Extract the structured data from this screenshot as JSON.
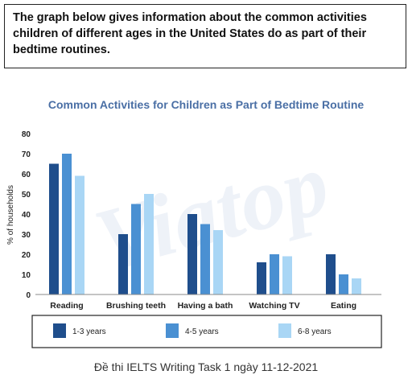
{
  "prompt_text": "The graph below gives information about the common activities children of different ages in the United States do as part of their bedtime routines.",
  "footer_text": "Đề thi IELTS Writing Task 1 ngày 11-12-2021",
  "watermark_text": "Viatop",
  "colors": {
    "series": [
      "#1f4e8c",
      "#4a90d2",
      "#a9d6f5"
    ],
    "title": "#4a6fa5"
  },
  "chart_data": {
    "type": "bar",
    "title": "Common Activities for Children as Part of Bedtime Routine",
    "ylabel": "% of households",
    "xlabel": "",
    "ylim": [
      0,
      80
    ],
    "yticks": [
      0,
      10,
      20,
      30,
      40,
      50,
      60,
      70,
      80
    ],
    "categories": [
      "Reading",
      "Brushing teeth",
      "Having a bath",
      "Watching TV",
      "Eating"
    ],
    "series": [
      {
        "name": "1-3 years",
        "values": [
          65,
          30,
          40,
          16,
          20
        ]
      },
      {
        "name": "4-5 years",
        "values": [
          70,
          45,
          35,
          20,
          10
        ]
      },
      {
        "name": "6-8 years",
        "values": [
          59,
          50,
          32,
          19,
          8
        ]
      }
    ],
    "grid": false,
    "legend": "bottom"
  }
}
